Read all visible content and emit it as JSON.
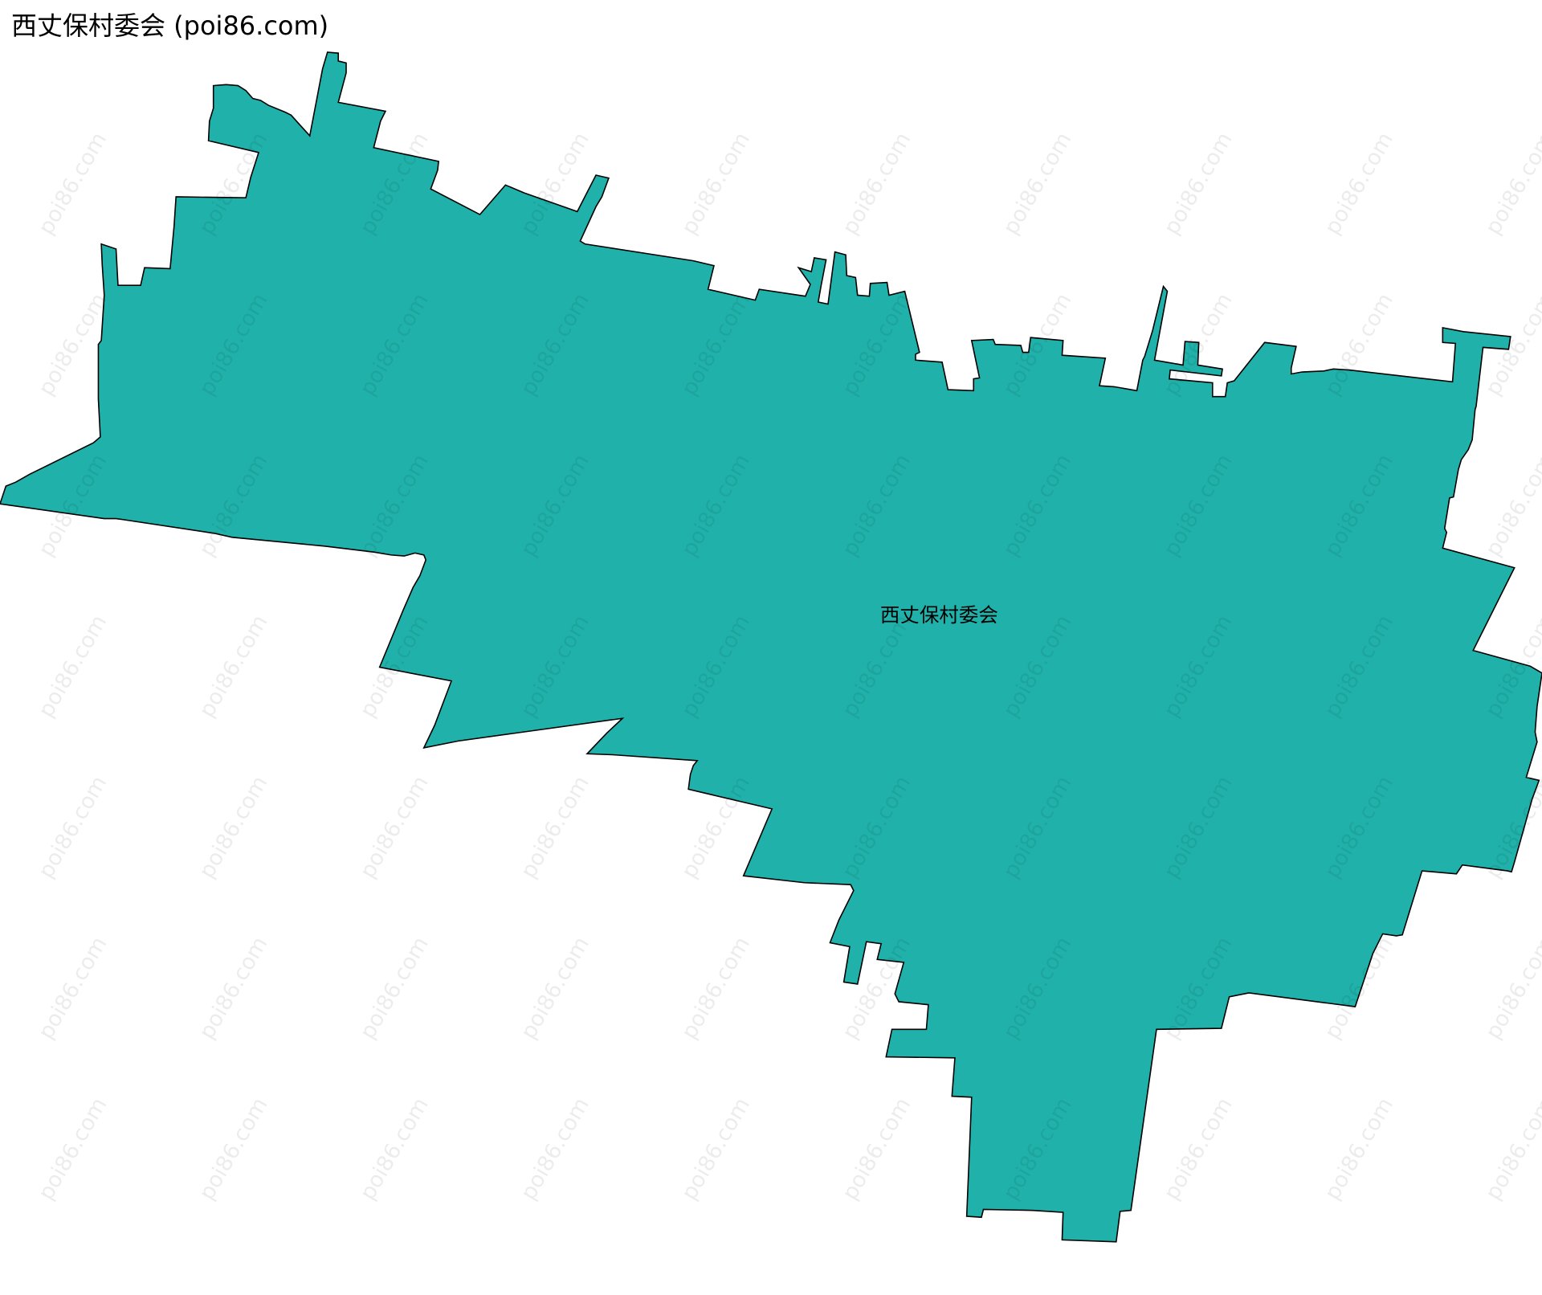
{
  "title": "西丈保村委会 (poi86.com)",
  "region": {
    "label": "西丈保村委会",
    "fill_color": "#20b2aa",
    "stroke_color": "#000000"
  },
  "watermark": "poi86.com"
}
